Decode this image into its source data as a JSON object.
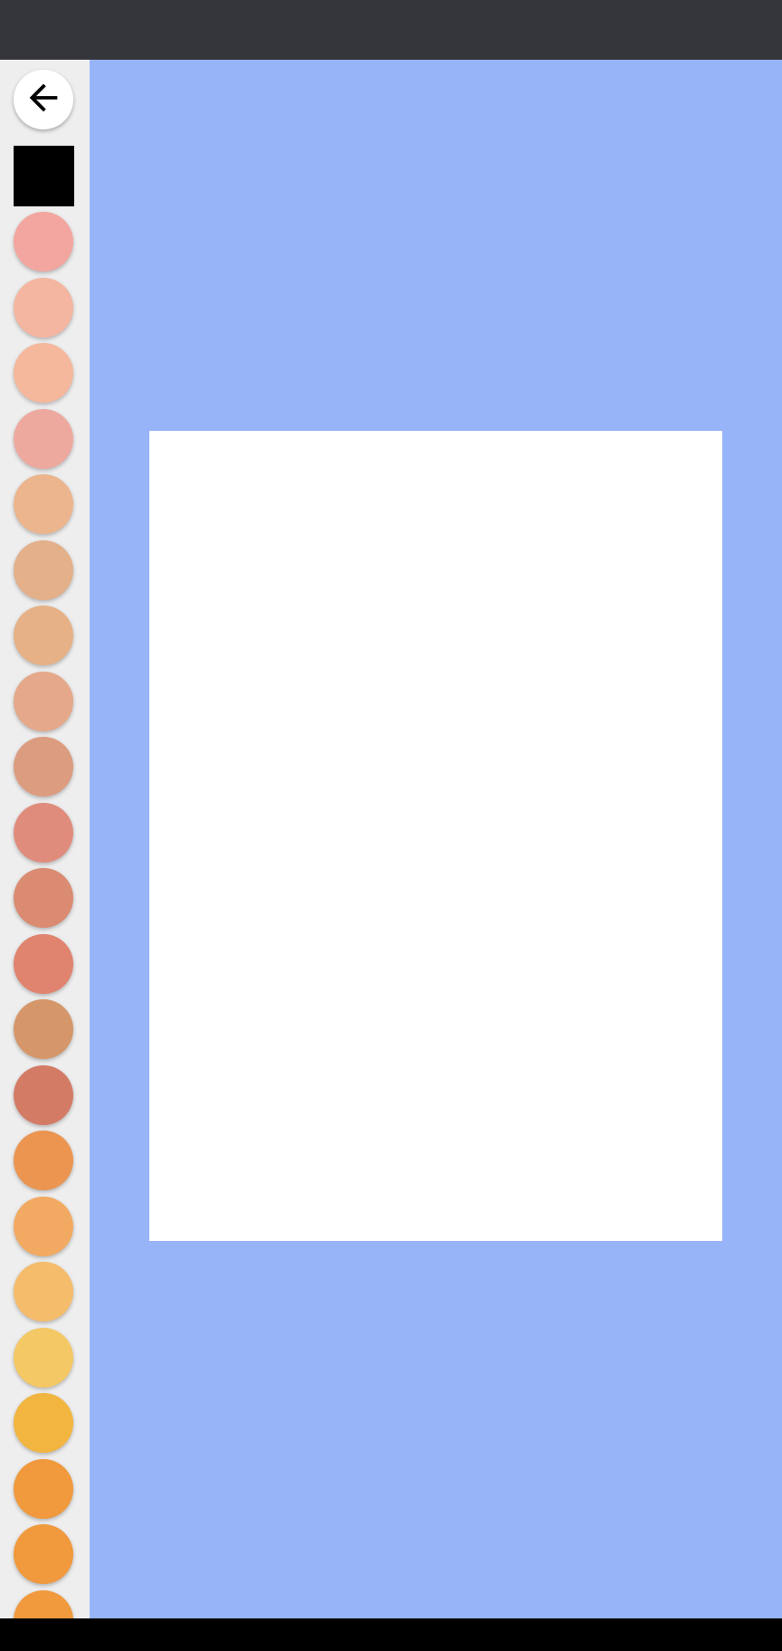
{
  "icons": {
    "back": "arrow-left-icon"
  },
  "colors": {
    "status_bar": "#35363a",
    "sidebar": "#eeeeee",
    "canvas_background": "#98b4f8",
    "drawing_page": "#ffffff",
    "nav_bar": "#000000",
    "selected_swatch": "#000000"
  },
  "palette": [
    "#f3a6a0",
    "#f4b6a0",
    "#f5b89c",
    "#eea99f",
    "#ecb58d",
    "#e3b08a",
    "#e6b186",
    "#e5a88a",
    "#dc9c7f",
    "#e08c7c",
    "#da8b72",
    "#e0836f",
    "#d5976a",
    "#d47b66",
    "#eb9551",
    "#f2aa62",
    "#f5bc6c",
    "#f4c865",
    "#f2b53f",
    "#f0993d",
    "#f0993d",
    "#f0993d"
  ]
}
